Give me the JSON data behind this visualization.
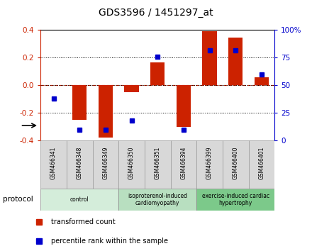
{
  "title": "GDS3596 / 1451297_at",
  "samples": [
    "GSM466341",
    "GSM466348",
    "GSM466349",
    "GSM466350",
    "GSM466351",
    "GSM466394",
    "GSM466399",
    "GSM466400",
    "GSM466401"
  ],
  "bar_values": [
    0.0,
    -0.25,
    -0.38,
    -0.05,
    0.165,
    -0.3,
    0.39,
    0.345,
    0.06
  ],
  "percentile_values": [
    38,
    10,
    10,
    18,
    76,
    10,
    82,
    82,
    60
  ],
  "groups": [
    {
      "label": "control",
      "start": 0,
      "end": 3,
      "color": "#d4edda"
    },
    {
      "label": "isoproterenol-induced\ncardiomyopathy",
      "start": 3,
      "end": 6,
      "color": "#b8dfc0"
    },
    {
      "label": "exercise-induced cardiac\nhypertrophy",
      "start": 6,
      "end": 9,
      "color": "#7cc98a"
    }
  ],
  "ylim_left": [
    -0.4,
    0.4
  ],
  "ylim_right": [
    0,
    100
  ],
  "yticks_left": [
    -0.4,
    -0.2,
    0.0,
    0.2,
    0.4
  ],
  "yticks_right": [
    0,
    25,
    50,
    75,
    100
  ],
  "bar_color": "#cc2200",
  "dot_color": "#0000cc",
  "zero_line_color": "#cc2200",
  "protocol_label": "protocol",
  "legend_bar_label": "transformed count",
  "legend_dot_label": "percentile rank within the sample",
  "bar_width": 0.55,
  "sample_cell_color": "#d8d8d8",
  "sample_cell_edge": "#999999"
}
